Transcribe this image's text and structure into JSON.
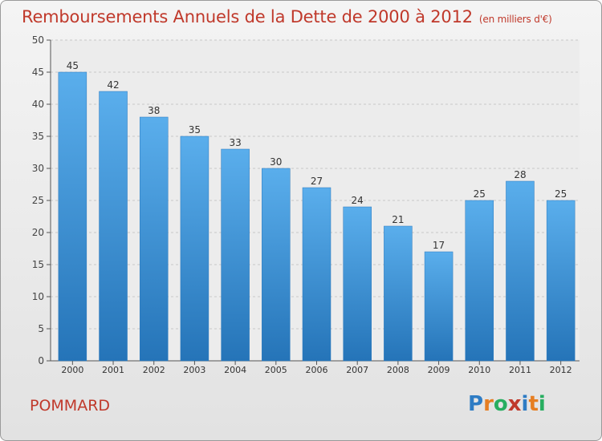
{
  "title": "Remboursements Annuels de la Dette de 2000 à 2012",
  "subtitle": "(en milliers d'€)",
  "town": "POMMARD",
  "logo": {
    "letters": [
      "P",
      "r",
      "o",
      "x",
      "i",
      "t",
      "i"
    ],
    "colors": [
      "#2e7cc4",
      "#e67e22",
      "#27ae60",
      "#c0392b",
      "#2e7cc4",
      "#e67e22",
      "#27ae60"
    ]
  },
  "chart_data": {
    "type": "bar",
    "title": "Remboursements Annuels de la Dette de 2000 à 2012",
    "xlabel": "",
    "ylabel": "",
    "ylim": [
      0,
      50
    ],
    "yticks": [
      0,
      5,
      10,
      15,
      20,
      25,
      30,
      35,
      40,
      45,
      50
    ],
    "grid": "horizontal",
    "categories": [
      "2000",
      "2001",
      "2002",
      "2003",
      "2004",
      "2005",
      "2006",
      "2007",
      "2008",
      "2009",
      "2010",
      "2011",
      "2012"
    ],
    "values": [
      45,
      42,
      38,
      35,
      33,
      30,
      27,
      24,
      21,
      17,
      25,
      28,
      25
    ],
    "bar_color": "#3f97dd"
  }
}
